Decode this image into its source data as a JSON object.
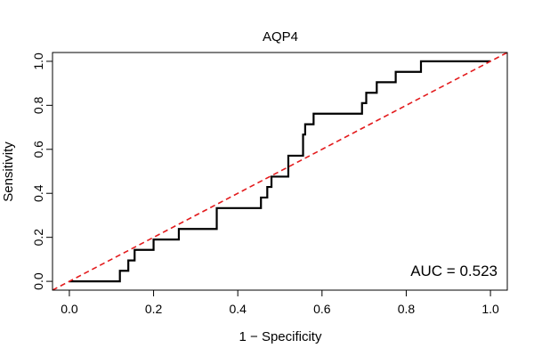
{
  "chart_data": {
    "type": "line",
    "title": "AQP4",
    "xlabel": "1 − Specificity",
    "ylabel": "Sensitivity",
    "xlim": [
      -0.04,
      1.04
    ],
    "ylim": [
      -0.04,
      1.04
    ],
    "x_ticks": [
      "0.0",
      "0.2",
      "0.4",
      "0.6",
      "0.8",
      "1.0"
    ],
    "y_ticks": [
      "0.0",
      "0.2",
      "0.4",
      "0.6",
      "0.8",
      "1.0"
    ],
    "grid": false,
    "legend": "none",
    "annotation": "AUC = 0.523",
    "series": [
      {
        "color": "#000000",
        "style": "solid",
        "x": [
          0.0,
          0.12,
          0.12,
          0.14,
          0.14,
          0.155,
          0.155,
          0.2,
          0.2,
          0.26,
          0.26,
          0.35,
          0.35,
          0.455,
          0.455,
          0.47,
          0.47,
          0.48,
          0.48,
          0.52,
          0.52,
          0.555,
          0.555,
          0.56,
          0.56,
          0.58,
          0.58,
          0.695,
          0.695,
          0.705,
          0.705,
          0.73,
          0.73,
          0.775,
          0.775,
          0.835,
          0.835,
          1.0
        ],
        "y": [
          0.0,
          0.0,
          0.048,
          0.048,
          0.095,
          0.095,
          0.143,
          0.143,
          0.19,
          0.19,
          0.238,
          0.238,
          0.333,
          0.333,
          0.381,
          0.381,
          0.429,
          0.429,
          0.476,
          0.476,
          0.571,
          0.571,
          0.667,
          0.667,
          0.714,
          0.714,
          0.762,
          0.762,
          0.81,
          0.81,
          0.857,
          0.857,
          0.905,
          0.905,
          0.952,
          0.952,
          1.0,
          1.0
        ]
      },
      {
        "color": "#e31a1c",
        "style": "dashed",
        "x": [
          -0.04,
          1.04
        ],
        "y": [
          -0.04,
          1.04
        ]
      }
    ]
  }
}
